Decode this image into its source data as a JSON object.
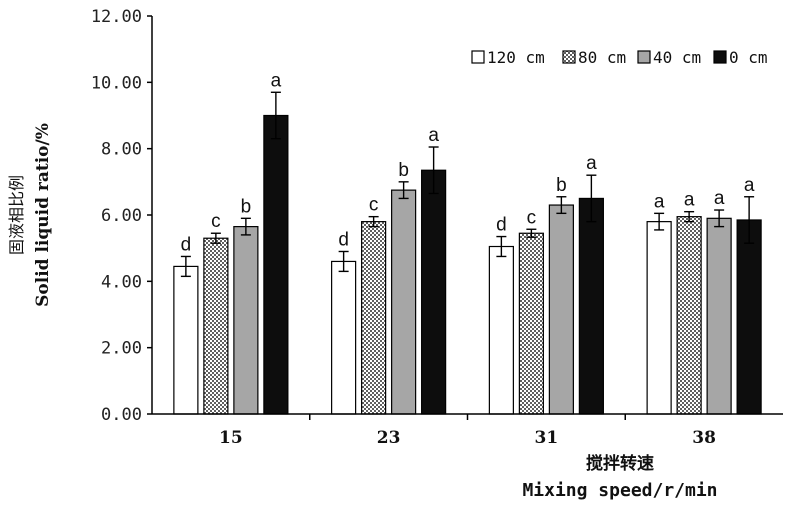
{
  "chart_data": {
    "type": "bar",
    "xlabel_cn": "搅拌转速",
    "xlabel_en": "Mixing speed/r/min",
    "ylabel_cn": "固液相比例",
    "ylabel_en": "Solid liquid ratio/%",
    "ylim": [
      0,
      12
    ],
    "yticks": [
      "0.00",
      "2.00",
      "4.00",
      "6.00",
      "8.00",
      "10.00",
      "12.00"
    ],
    "categories": [
      "15",
      "23",
      "31",
      "38"
    ],
    "legend_position": "top-right",
    "series": [
      {
        "name": "120 cm",
        "pattern": "white",
        "values": [
          4.45,
          4.6,
          5.05,
          5.8
        ],
        "errors": [
          0.3,
          0.3,
          0.3,
          0.25
        ],
        "letters": [
          "d",
          "d",
          "d",
          "a"
        ]
      },
      {
        "name": "80 cm",
        "pattern": "checker",
        "values": [
          5.3,
          5.8,
          5.45,
          5.95
        ],
        "errors": [
          0.15,
          0.15,
          0.12,
          0.15
        ],
        "letters": [
          "c",
          "c",
          "c",
          "a"
        ]
      },
      {
        "name": "40 cm",
        "pattern": "gray",
        "values": [
          5.65,
          6.75,
          6.3,
          5.9
        ],
        "errors": [
          0.25,
          0.25,
          0.25,
          0.25
        ],
        "letters": [
          "b",
          "b",
          "b",
          "a"
        ]
      },
      {
        "name": "0 cm",
        "pattern": "black",
        "values": [
          9.0,
          7.35,
          6.5,
          5.85
        ],
        "errors": [
          0.7,
          0.7,
          0.7,
          0.7
        ],
        "letters": [
          "a",
          "a",
          "a",
          "a"
        ]
      }
    ],
    "colors": {
      "gray": "#a6a6a6",
      "black": "#0d0d0d",
      "checker_dark": "#606060",
      "checker_light": "#ffffff"
    }
  }
}
